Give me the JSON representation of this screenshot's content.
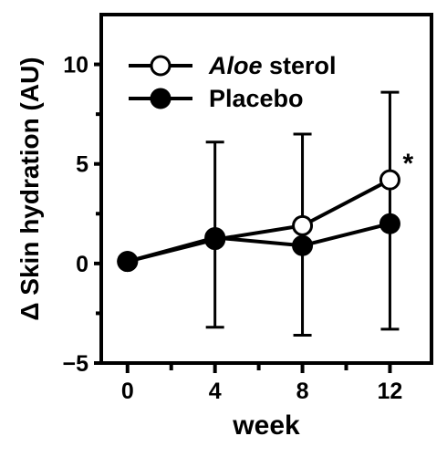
{
  "chart_data": {
    "type": "line",
    "xlabel": "week",
    "ylabel": "Δ Skin hydration (AU)",
    "x": [
      0,
      4,
      8,
      12
    ],
    "x_ticks": [
      "0",
      "4",
      "8",
      "12"
    ],
    "y_ticks": [
      "10",
      "5",
      "0",
      "−5"
    ],
    "ylim": [
      -5,
      12.5
    ],
    "xlim": [
      -1.2,
      13.9
    ],
    "grid": false,
    "legend_position": "top-left",
    "legend_title_parts": [
      {
        "text": "Aloe",
        "italic": true
      },
      {
        "text": " sterol",
        "italic": false
      }
    ],
    "series": [
      {
        "name": "Aloe sterol",
        "marker": "open-circle",
        "values": [
          0.1,
          1.2,
          1.9,
          4.2
        ],
        "error_upper": [
          0.1,
          1.2,
          6.5,
          8.6
        ],
        "error_lower": [
          0.1,
          1.2,
          -3.6,
          -3.3
        ]
      },
      {
        "name": "Placebo",
        "marker": "filled-circle",
        "values": [
          0.1,
          1.3,
          0.9,
          2.0
        ],
        "error_upper": [
          0.1,
          6.1,
          0.9,
          2.0
        ],
        "error_lower": [
          0.1,
          -3.2,
          0.9,
          2.0
        ]
      }
    ],
    "annotations": [
      {
        "text": "*",
        "x": 12,
        "y": 4.2
      }
    ],
    "colors": {
      "line": "#000000",
      "open_marker_fill": "#ffffff",
      "filled_marker_fill": "#000000"
    }
  }
}
